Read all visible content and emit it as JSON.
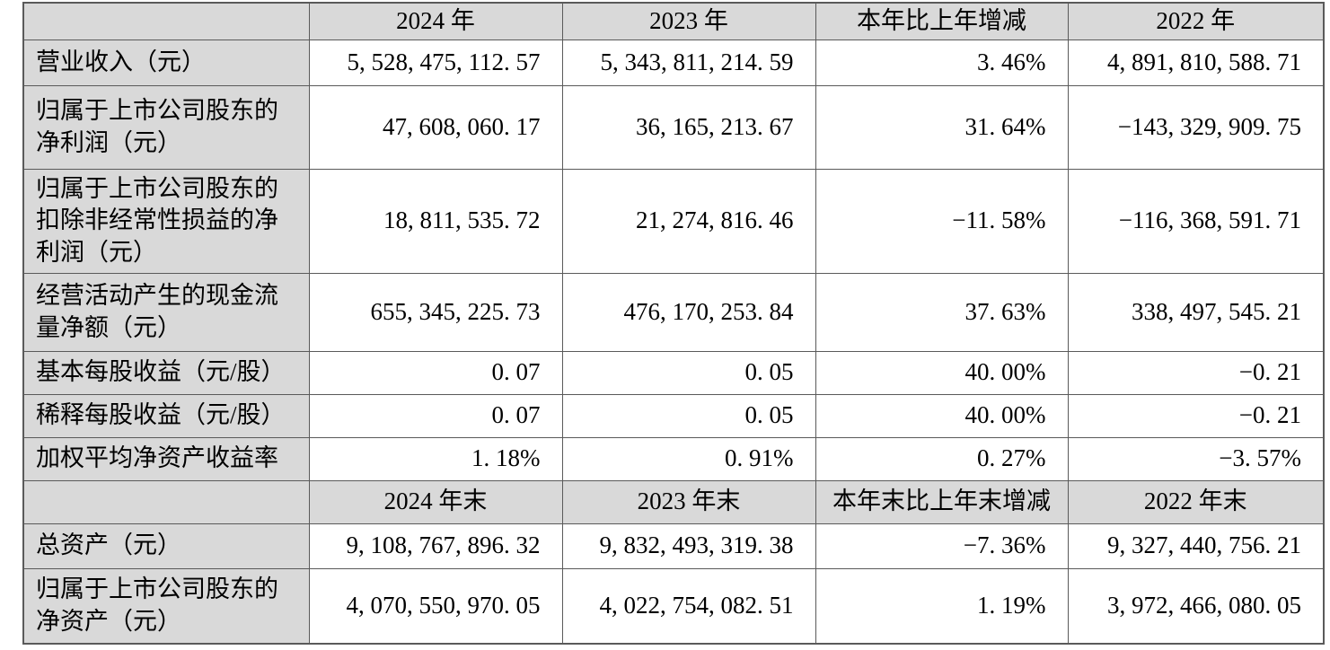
{
  "colors": {
    "shaded_bg": "#d9d9d9",
    "border": "#5a5a5a",
    "cell_bg": "#ffffff",
    "text": "#000000"
  },
  "table": {
    "description": "financial-highlights-table",
    "sections": [
      {
        "header": {
          "cells": [
            "",
            "2024 年",
            "2023 年",
            "本年比上年增减",
            "2022 年"
          ]
        },
        "rows": [
          {
            "label": "营业收入（元）",
            "values": [
              "5, 528, 475, 112. 57",
              "5, 343, 811, 214. 59",
              "3. 46%",
              "4, 891, 810, 588. 71"
            ]
          },
          {
            "label": "归属于上市公司股东的净利润（元）",
            "values": [
              "47, 608, 060. 17",
              "36, 165, 213. 67",
              "31. 64%",
              "−143, 329, 909. 75"
            ]
          },
          {
            "label": "归属于上市公司股东的扣除非经常性损益的净利润（元）",
            "values": [
              "18, 811, 535. 72",
              "21, 274, 816. 46",
              "−11. 58%",
              "−116, 368, 591. 71"
            ]
          },
          {
            "label": "经营活动产生的现金流量净额（元）",
            "values": [
              "655, 345, 225. 73",
              "476, 170, 253. 84",
              "37. 63%",
              "338, 497, 545. 21"
            ]
          },
          {
            "label": "基本每股收益（元/股）",
            "values": [
              "0. 07",
              "0. 05",
              "40. 00%",
              "−0. 21"
            ]
          },
          {
            "label": "稀释每股收益（元/股）",
            "values": [
              "0. 07",
              "0. 05",
              "40. 00%",
              "−0. 21"
            ]
          },
          {
            "label": "加权平均净资产收益率",
            "values": [
              "1. 18%",
              "0. 91%",
              "0. 27%",
              "−3. 57%"
            ]
          }
        ]
      },
      {
        "header": {
          "cells": [
            "",
            "2024 年末",
            "2023 年末",
            "本年末比上年末增减",
            "2022 年末"
          ]
        },
        "rows": [
          {
            "label": "总资产（元）",
            "values": [
              "9, 108, 767, 896. 32",
              "9, 832, 493, 319. 38",
              "−7. 36%",
              "9, 327, 440, 756. 21"
            ]
          },
          {
            "label": "归属于上市公司股东的净资产（元）",
            "values": [
              "4, 070, 550, 970. 05",
              "4, 022, 754, 082. 51",
              "1. 19%",
              "3, 972, 466, 080. 05"
            ]
          }
        ]
      }
    ]
  }
}
